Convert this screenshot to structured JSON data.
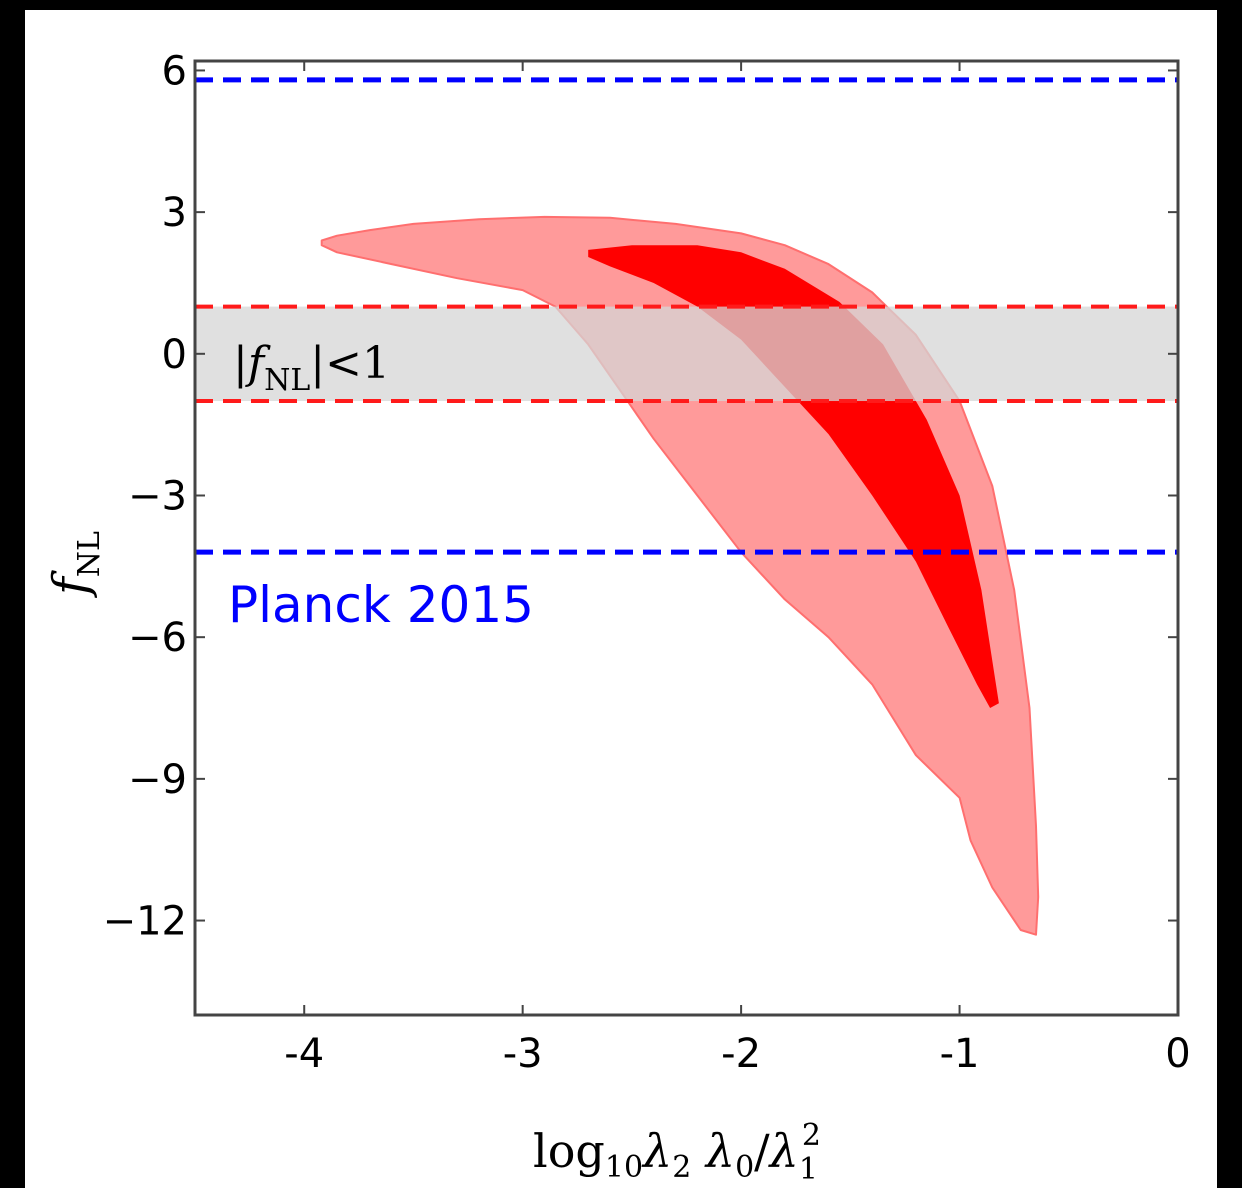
{
  "chart_data": {
    "type": "area",
    "xlabel": "log10 λ2 λ0 / λ1^2",
    "ylabel": "fNL",
    "xlim": [
      -4.5,
      0
    ],
    "ylim": [
      -14,
      6.2
    ],
    "x_ticks": [
      "-4",
      "-3",
      "-2",
      "-1",
      "0"
    ],
    "y_ticks": [
      "6",
      "3",
      "0",
      "−3",
      "−6",
      "−9",
      "−12"
    ],
    "x_tick_values": [
      -4,
      -3,
      -2,
      -1,
      0
    ],
    "y_tick_values": [
      6,
      3,
      0,
      -3,
      -6,
      -9,
      -12
    ],
    "regions": [
      {
        "level": "outer",
        "color": "#ff9a9a",
        "points": [
          [
            -3.92,
            2.4
          ],
          [
            -3.85,
            2.5
          ],
          [
            -3.7,
            2.62
          ],
          [
            -3.5,
            2.75
          ],
          [
            -3.2,
            2.85
          ],
          [
            -2.9,
            2.9
          ],
          [
            -2.6,
            2.88
          ],
          [
            -2.3,
            2.75
          ],
          [
            -2.0,
            2.55
          ],
          [
            -1.8,
            2.3
          ],
          [
            -1.6,
            1.9
          ],
          [
            -1.4,
            1.3
          ],
          [
            -1.2,
            0.4
          ],
          [
            -1.0,
            -1.0
          ],
          [
            -0.85,
            -2.8
          ],
          [
            -0.75,
            -5.0
          ],
          [
            -0.68,
            -7.5
          ],
          [
            -0.65,
            -10.0
          ],
          [
            -0.64,
            -11.5
          ],
          [
            -0.65,
            -12.3
          ],
          [
            -0.72,
            -12.2
          ],
          [
            -0.85,
            -11.3
          ],
          [
            -0.95,
            -10.3
          ],
          [
            -1.0,
            -9.4
          ],
          [
            -1.2,
            -8.5
          ],
          [
            -1.4,
            -7.0
          ],
          [
            -1.6,
            -6.0
          ],
          [
            -1.8,
            -5.2
          ],
          [
            -2.0,
            -4.2
          ],
          [
            -2.2,
            -3.0
          ],
          [
            -2.4,
            -1.8
          ],
          [
            -2.55,
            -0.8
          ],
          [
            -2.7,
            0.2
          ],
          [
            -2.85,
            1.0
          ],
          [
            -3.0,
            1.35
          ],
          [
            -3.3,
            1.6
          ],
          [
            -3.6,
            1.9
          ],
          [
            -3.85,
            2.15
          ],
          [
            -3.92,
            2.3
          ]
        ]
      },
      {
        "level": "inner",
        "color": "#ff0000",
        "points": [
          [
            -2.7,
            2.2
          ],
          [
            -2.5,
            2.3
          ],
          [
            -2.2,
            2.3
          ],
          [
            -2.0,
            2.15
          ],
          [
            -1.8,
            1.8
          ],
          [
            -1.55,
            1.1
          ],
          [
            -1.35,
            0.2
          ],
          [
            -1.15,
            -1.4
          ],
          [
            -1.0,
            -3.0
          ],
          [
            -0.9,
            -5.0
          ],
          [
            -0.84,
            -6.8
          ],
          [
            -0.82,
            -7.4
          ],
          [
            -0.86,
            -7.5
          ],
          [
            -0.92,
            -7.0
          ],
          [
            -1.05,
            -5.8
          ],
          [
            -1.2,
            -4.4
          ],
          [
            -1.4,
            -3.0
          ],
          [
            -1.6,
            -1.7
          ],
          [
            -1.8,
            -0.7
          ],
          [
            -2.0,
            0.3
          ],
          [
            -2.2,
            1.0
          ],
          [
            -2.4,
            1.5
          ],
          [
            -2.6,
            1.85
          ],
          [
            -2.7,
            2.05
          ]
        ]
      }
    ],
    "band": {
      "y_from": -1,
      "y_to": 1,
      "label": "|fNL|<1",
      "fill": "#d6d6d6",
      "line_color": "#ff1a1a"
    },
    "planck": {
      "y_upper": 5.8,
      "y_lower": -4.2,
      "label": "Planck 2015",
      "color": "#0000ff"
    }
  }
}
